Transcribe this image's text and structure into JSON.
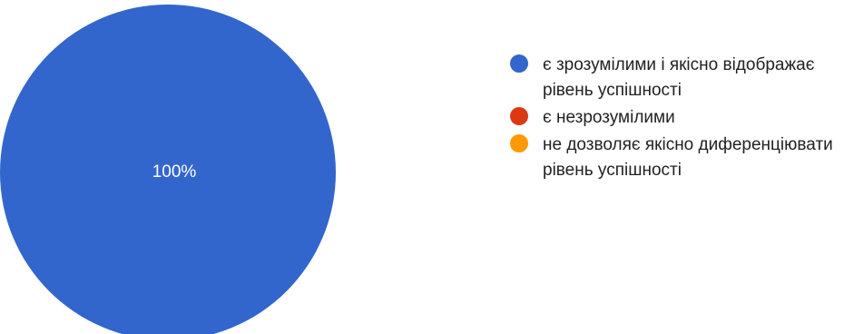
{
  "chart_data": {
    "type": "pie",
    "categories": [
      "є зрозумілими і якісно відображає рівень успішності",
      "є незрозумілими",
      "не дозволяє якісно диференціювати рівень успішності"
    ],
    "values": [
      100,
      0,
      0
    ],
    "data_labels": [
      "100%"
    ],
    "colors": [
      "#3366cc",
      "#dc3912",
      "#ff9900"
    ],
    "legend_position": "right"
  }
}
